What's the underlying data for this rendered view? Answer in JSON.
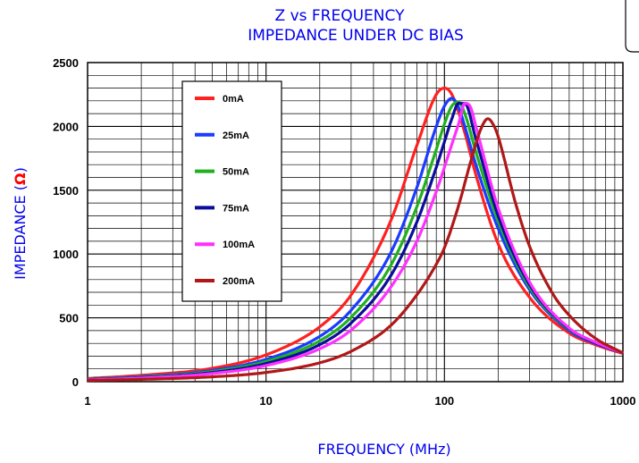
{
  "chart_data": {
    "type": "line",
    "title": "Z vs FREQUENCY",
    "subtitle": "IMPEDANCE UNDER DC BIAS",
    "xlabel": "FREQUENCY (MHz)",
    "ylabel": "IMPEDANCE (Ω)",
    "ylabel_prefix": "IMPEDANCE (",
    "ylabel_symbol": "Ω",
    "ylabel_suffix": ")",
    "x_scale": "log",
    "xlim": [
      1,
      1000
    ],
    "ylim": [
      0,
      2500
    ],
    "x_ticks": [
      "1",
      "10",
      "100",
      "1000"
    ],
    "y_ticks": [
      "0",
      "500",
      "1000",
      "1500",
      "2000",
      "2500"
    ],
    "grid": true,
    "legend_position": "top-left",
    "series": [
      {
        "name": "0mA",
        "color": "#ff2020",
        "x": [
          1,
          2,
          5,
          10,
          20,
          30,
          50,
          70,
          90,
          100,
          110,
          130,
          150,
          200,
          300,
          500,
          700,
          1000
        ],
        "y": [
          25,
          50,
          105,
          210,
          430,
          680,
          1260,
          1850,
          2250,
          2300,
          2250,
          1950,
          1620,
          1080,
          660,
          380,
          290,
          220
        ]
      },
      {
        "name": "25mA",
        "color": "#1a3cff",
        "x": [
          1,
          2,
          5,
          10,
          20,
          30,
          50,
          70,
          90,
          100,
          110,
          120,
          130,
          150,
          200,
          300,
          500,
          700,
          1000
        ],
        "y": [
          20,
          40,
          88,
          175,
          355,
          560,
          1010,
          1520,
          2000,
          2160,
          2220,
          2150,
          2000,
          1700,
          1200,
          720,
          400,
          300,
          225
        ]
      },
      {
        "name": "50mA",
        "color": "#20b020",
        "x": [
          1,
          2,
          5,
          10,
          20,
          30,
          50,
          70,
          90,
          100,
          110,
          120,
          130,
          150,
          200,
          300,
          500,
          700,
          1000
        ],
        "y": [
          18,
          36,
          80,
          158,
          320,
          505,
          910,
          1370,
          1820,
          2020,
          2160,
          2190,
          2100,
          1800,
          1260,
          740,
          410,
          305,
          225
        ]
      },
      {
        "name": "75mA",
        "color": "#0c0c9c",
        "x": [
          1,
          2,
          5,
          10,
          20,
          30,
          50,
          70,
          90,
          100,
          110,
          120,
          130,
          150,
          200,
          300,
          500,
          700,
          1000
        ],
        "y": [
          16,
          32,
          72,
          142,
          290,
          460,
          830,
          1250,
          1680,
          1880,
          2060,
          2180,
          2180,
          1900,
          1300,
          760,
          415,
          305,
          225
        ]
      },
      {
        "name": "100mA",
        "color": "#ff30ff",
        "x": [
          1,
          2,
          5,
          10,
          20,
          30,
          50,
          70,
          90,
          100,
          110,
          120,
          130,
          140,
          150,
          200,
          300,
          500,
          700,
          1000
        ],
        "y": [
          14,
          28,
          64,
          126,
          258,
          405,
          740,
          1100,
          1490,
          1680,
          1860,
          2020,
          2180,
          2150,
          2000,
          1360,
          780,
          420,
          310,
          225
        ]
      },
      {
        "name": "200mA",
        "color": "#b01818",
        "x": [
          1,
          2,
          5,
          10,
          20,
          30,
          50,
          70,
          90,
          100,
          120,
          140,
          160,
          175,
          190,
          200,
          250,
          300,
          400,
          500,
          700,
          1000
        ],
        "y": [
          10,
          18,
          38,
          72,
          148,
          238,
          440,
          680,
          920,
          1050,
          1380,
          1720,
          1980,
          2060,
          2000,
          1920,
          1400,
          1060,
          700,
          520,
          340,
          225
        ]
      }
    ]
  }
}
